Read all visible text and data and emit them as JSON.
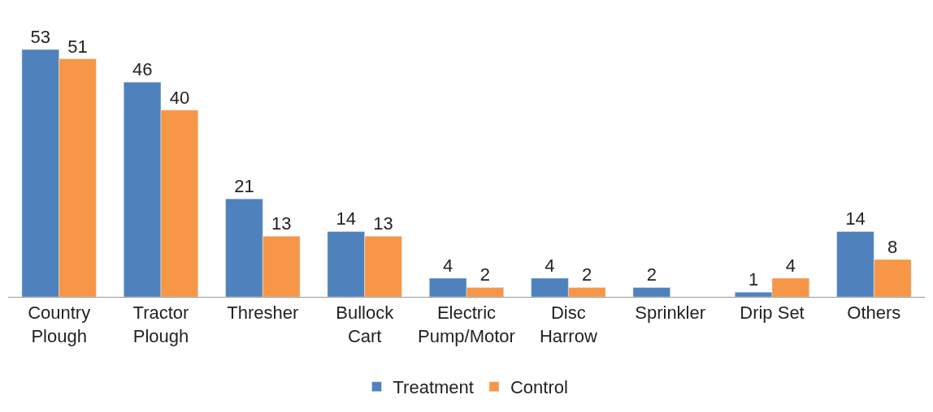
{
  "chart_data": {
    "type": "bar",
    "categories": [
      "Country Plough",
      "Tractor Plough",
      "Thresher",
      "Bullock Cart",
      "Electric Pump/Motor",
      "Disc Harrow",
      "Sprinkler",
      "Drip Set",
      "Others"
    ],
    "series": [
      {
        "name": "Treatment",
        "color": "#4f81bd",
        "values": [
          53,
          46,
          21,
          14,
          4,
          4,
          2,
          1,
          14
        ]
      },
      {
        "name": "Control",
        "color": "#f79646",
        "values": [
          51,
          40,
          13,
          13,
          2,
          2,
          null,
          4,
          8
        ]
      }
    ],
    "data_labels": true,
    "legend": "bottom"
  }
}
